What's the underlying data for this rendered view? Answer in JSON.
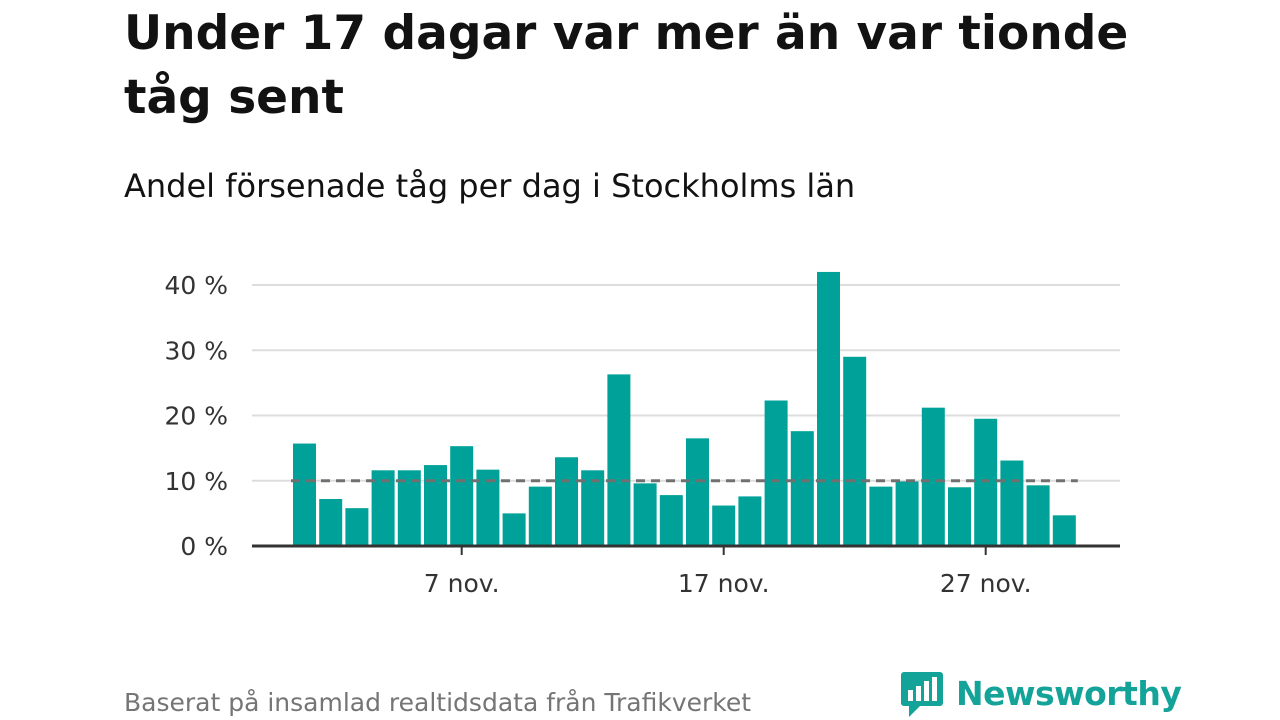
{
  "title": "Under 17 dagar var mer än var tionde tåg sent",
  "subtitle": "Andel försenade tåg per dag i Stockholms län",
  "source": "Baserat på insamlad realtidsdata från Trafikverket",
  "brand": {
    "name": "Newsworthy",
    "icon": "bar-chart-speech-bubble-icon",
    "color": "#14a398"
  },
  "colors": {
    "bar": "#00a199",
    "reference_line": "#707070",
    "grid": "#dddddd",
    "axis": "#333333"
  },
  "chart_data": {
    "type": "bar",
    "title": "Under 17 dagar var mer än var tionde tåg sent",
    "subtitle": "Andel försenade tåg per dag i Stockholms län",
    "x": [
      1,
      2,
      3,
      4,
      5,
      6,
      7,
      8,
      9,
      10,
      11,
      12,
      13,
      14,
      15,
      16,
      17,
      18,
      19,
      20,
      21,
      22,
      23,
      24,
      25,
      26,
      27,
      28,
      29,
      30
    ],
    "x_unit": "day of November",
    "values": [
      15.7,
      7.2,
      5.8,
      11.6,
      11.6,
      12.4,
      15.3,
      11.7,
      5.0,
      9.1,
      13.6,
      11.6,
      26.3,
      9.6,
      7.8,
      16.5,
      6.2,
      7.6,
      22.3,
      17.6,
      42.0,
      29.0,
      9.1,
      9.9,
      21.2,
      9.0,
      19.5,
      13.1,
      9.3,
      4.7
    ],
    "y_unit": "%",
    "ylim": [
      0,
      42
    ],
    "yticks": [
      {
        "value": 0,
        "label": "0 %"
      },
      {
        "value": 10,
        "label": "10 %"
      },
      {
        "value": 20,
        "label": "20 %"
      },
      {
        "value": 30,
        "label": "30 %"
      },
      {
        "value": 40,
        "label": "40 %"
      }
    ],
    "xticks": [
      {
        "x": 7,
        "label": "7 nov."
      },
      {
        "x": 17,
        "label": "17 nov."
      },
      {
        "x": 27,
        "label": "27 nov."
      }
    ],
    "reference_line": {
      "value": 10,
      "style": "dashed"
    },
    "grid": true,
    "legend": "none"
  }
}
